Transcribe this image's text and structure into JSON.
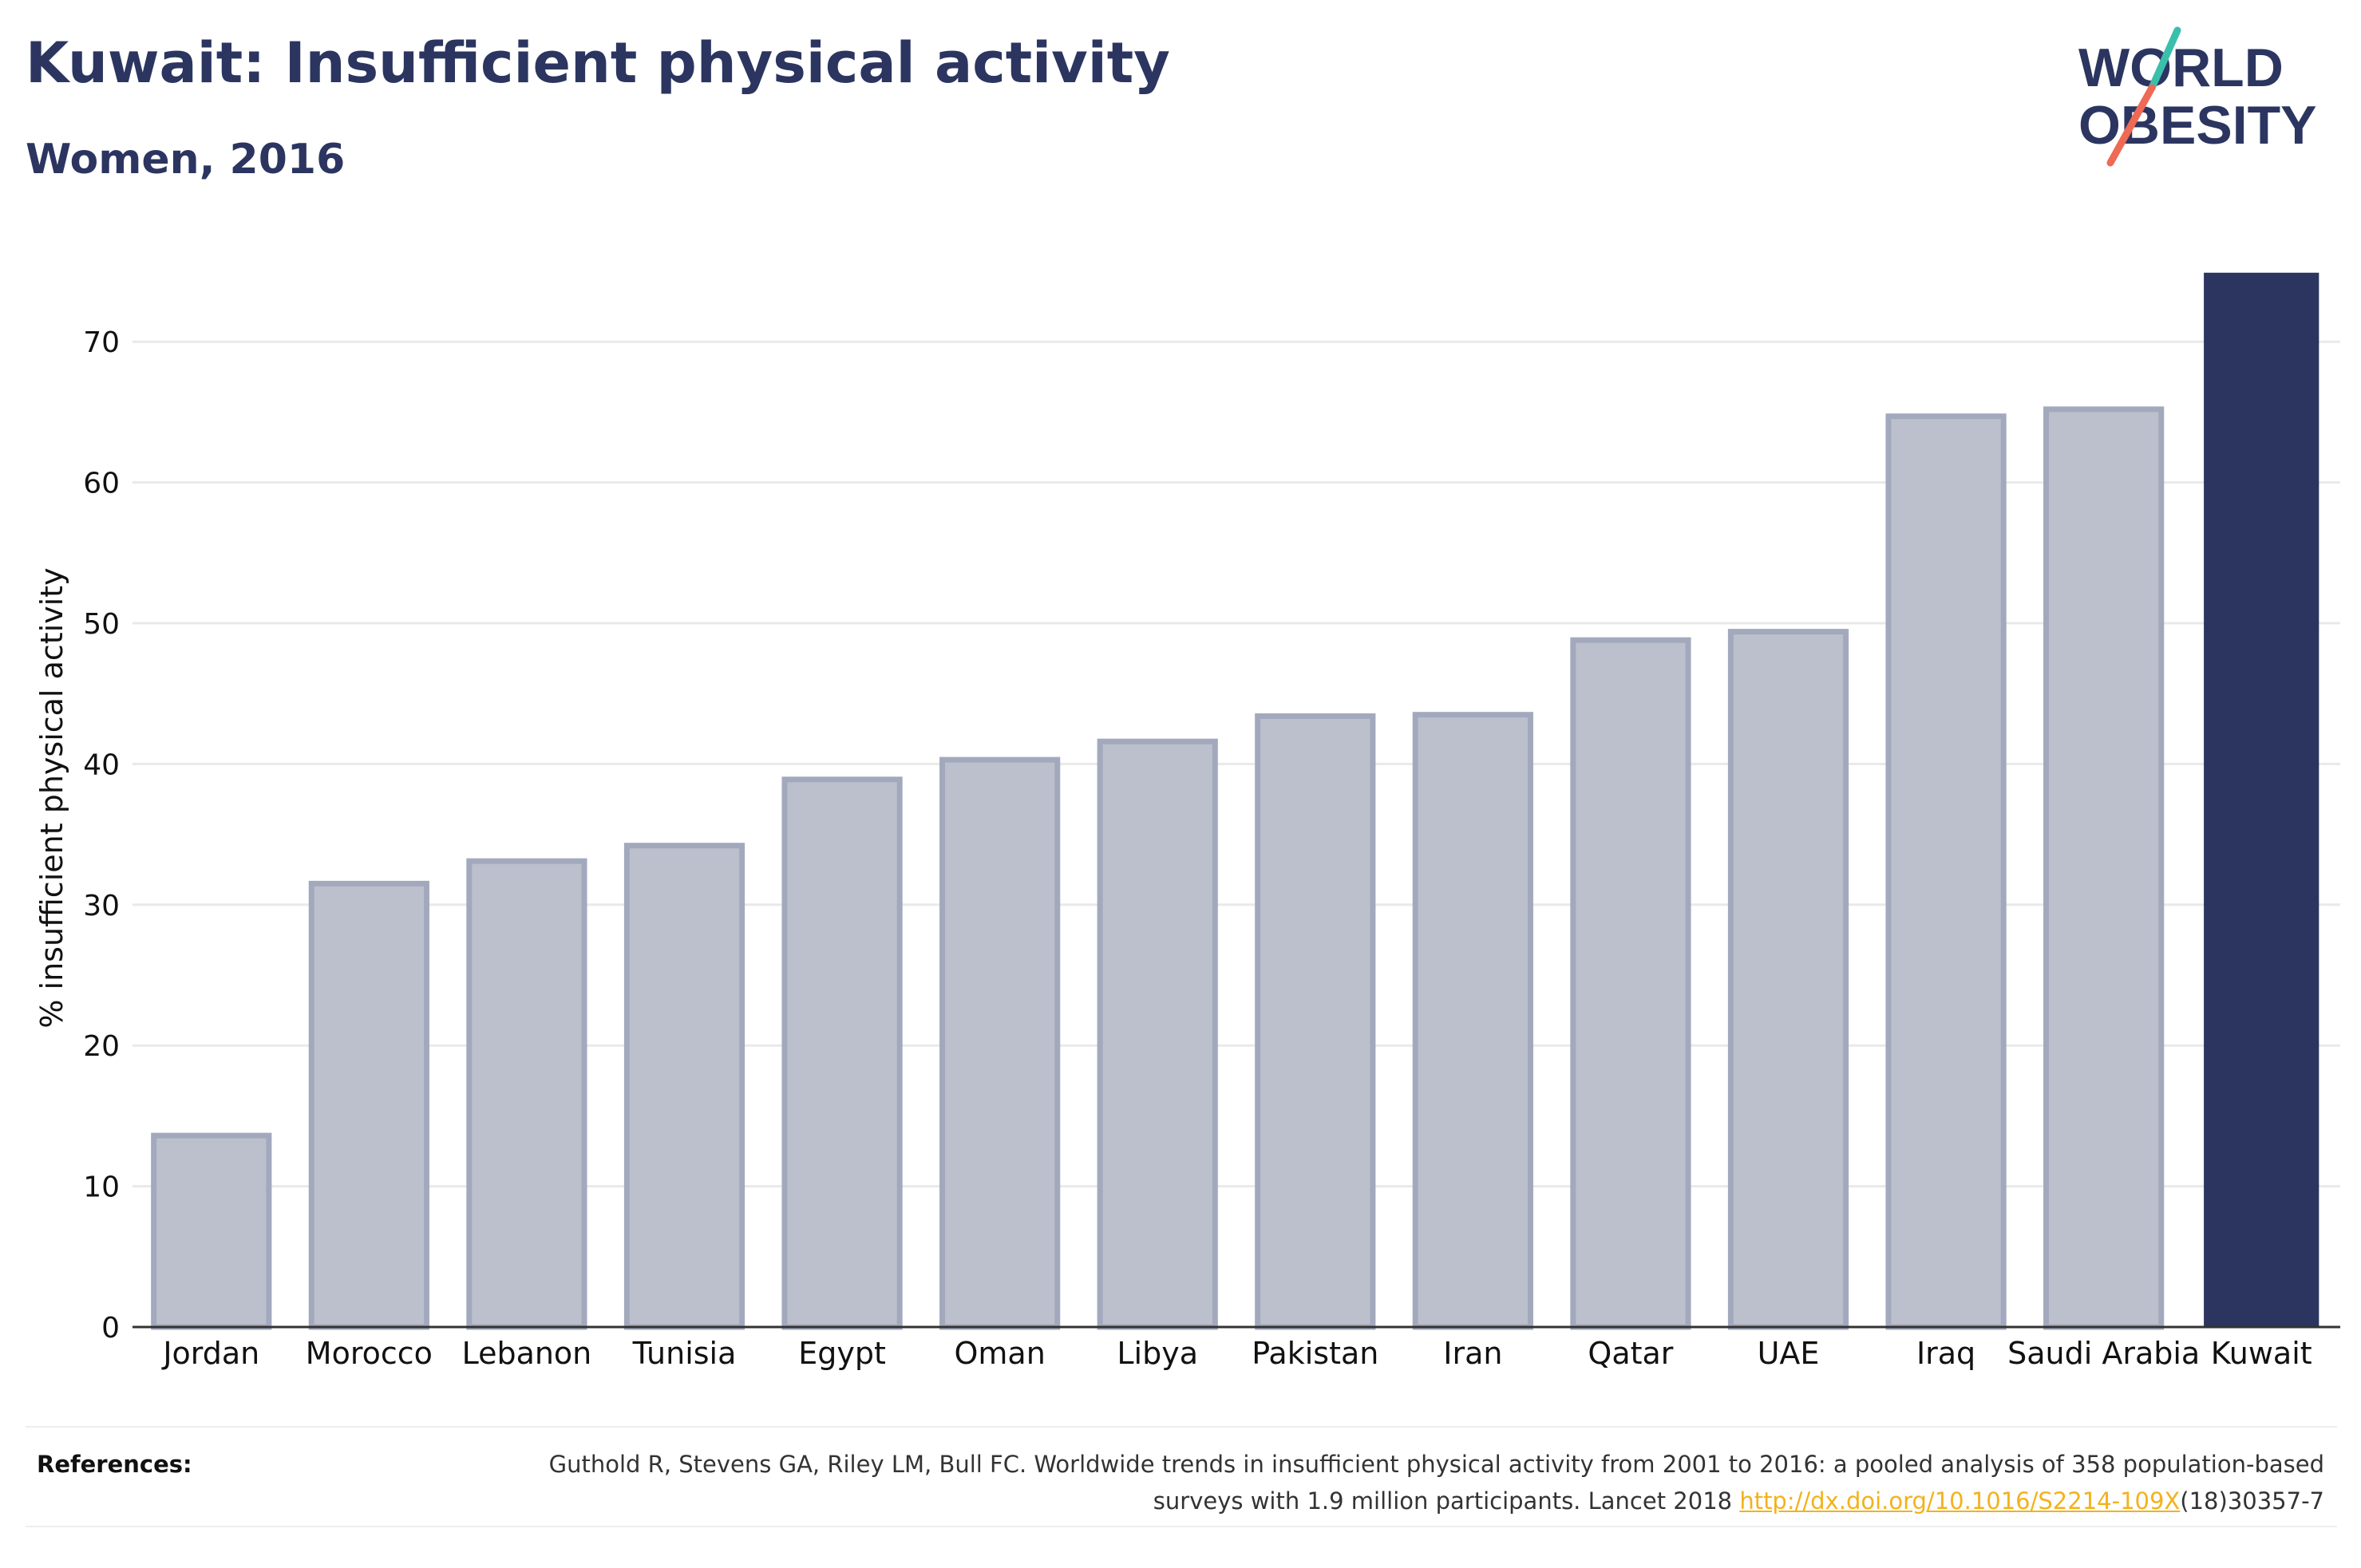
{
  "header": {
    "title": "Kuwait: Insufficient physical activity",
    "subtitle": "Women, 2016"
  },
  "logo": {
    "line1": "WORLD",
    "line2": "OBESITY",
    "text_color": "#2b3560",
    "slash_colors": [
      "#3bbfad",
      "#ee6a55"
    ]
  },
  "chart_data": {
    "type": "bar",
    "categories": [
      "Jordan",
      "Morocco",
      "Lebanon",
      "Tunisia",
      "Egypt",
      "Oman",
      "Libya",
      "Pakistan",
      "Iran",
      "Qatar",
      "UAE",
      "Iraq",
      "Saudi Arabia",
      "Kuwait"
    ],
    "values": [
      13.6,
      31.5,
      33.1,
      34.2,
      38.9,
      40.3,
      41.6,
      43.4,
      43.5,
      48.8,
      49.4,
      64.7,
      65.2,
      74.9
    ],
    "highlight": "Kuwait",
    "ylabel": "% insufficient physical activity",
    "xlabel": "",
    "ylim": [
      0,
      75
    ],
    "yticks": [
      0,
      10,
      20,
      30,
      40,
      50,
      60,
      70
    ],
    "grid": true,
    "colors": {
      "bar": "#bcc0cd",
      "bar_outline": "#a3a9bd",
      "highlight": "#2b3560",
      "grid": "#e9e9e9",
      "axis": "#333333"
    }
  },
  "references": {
    "label": "References:",
    "text_before_link": "Guthold R, Stevens GA, Riley LM, Bull FC. Worldwide trends in insufficient physical activity from 2001 to 2016: a pooled analysis of 358 population-based surveys with 1.9 million participants. Lancet 2018 ",
    "link": "http://dx.doi.org/10.1016/S2214-109X",
    "text_after_link": "(18)30357-7"
  }
}
